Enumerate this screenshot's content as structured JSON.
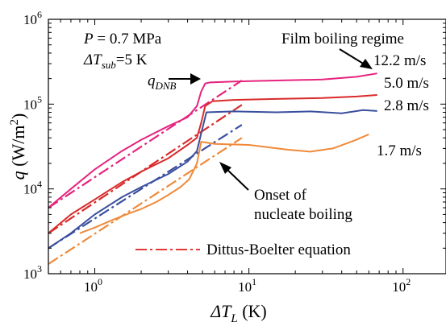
{
  "chart_data": {
    "type": "line",
    "xscale": "log",
    "yscale": "log",
    "xlim": [
      0.5,
      190
    ],
    "ylim": [
      1000,
      1000000
    ],
    "grid": false,
    "xlabel": {
      "main": "ΔT",
      "sub": "L",
      "unit": " (K)"
    },
    "ylabel": {
      "main": "q",
      "unit": "  (W/m",
      "sup": "2",
      "close": ")"
    },
    "xticks": [
      {
        "value": 1,
        "base": "10",
        "exp": "0"
      },
      {
        "value": 10,
        "base": "10",
        "exp": "1"
      },
      {
        "value": 100,
        "base": "10",
        "exp": "2"
      }
    ],
    "yticks": [
      {
        "value": 1000,
        "base": "10",
        "exp": "3"
      },
      {
        "value": 10000,
        "base": "10",
        "exp": "4"
      },
      {
        "value": 100000,
        "base": "10",
        "exp": "5"
      },
      {
        "value": 1000000,
        "base": "10",
        "exp": "6"
      }
    ],
    "conditions": {
      "pressure": {
        "sym": "P",
        "text": " = 0.7 MPa"
      },
      "subcooling": {
        "sym": "ΔT",
        "sub": "sub",
        "text": "=5 K"
      }
    },
    "annotations": {
      "film": "Film boiling regime",
      "qdnb": {
        "sym": "q",
        "sub": "DNB"
      },
      "onb_line1": "Onset of",
      "onb_line2": "nucleate boiling"
    },
    "legend": {
      "label": "Dittus-Boelter equation",
      "position": "bottom-center",
      "color": "#e23a3a"
    },
    "series": [
      {
        "name": "12.2 m/s",
        "color": "#e6237e",
        "x": [
          0.5,
          0.7,
          1.0,
          1.5,
          2.0,
          3.0,
          4.0,
          4.6,
          4.9,
          5.2,
          5.6,
          8,
          15,
          30,
          50,
          68
        ],
        "y": [
          6000,
          10000,
          17000,
          28000,
          38000,
          55000,
          70000,
          95000,
          140000,
          175000,
          180000,
          185000,
          190000,
          195000,
          210000,
          230000
        ],
        "fit": {
          "x": [
            0.5,
            9
          ],
          "y": [
            6000,
            190000
          ]
        }
      },
      {
        "name": "5.0 m/s",
        "color": "#d92a2a",
        "x": [
          0.5,
          0.7,
          1.0,
          1.5,
          2.0,
          3.0,
          4.0,
          4.6,
          4.9,
          5.2,
          5.8,
          8,
          15,
          30,
          50,
          68
        ],
        "y": [
          3000,
          5000,
          7500,
          12000,
          16000,
          23000,
          33000,
          40000,
          60000,
          95000,
          108000,
          112000,
          115000,
          118000,
          123000,
          128000
        ],
        "fit": {
          "x": [
            0.5,
            9
          ],
          "y": [
            3000,
            98000
          ]
        }
      },
      {
        "name": "2.8 m/s",
        "color": "#3a4f9e",
        "x": [
          0.5,
          0.7,
          1.0,
          1.5,
          2.0,
          3.0,
          4.0,
          4.6,
          4.9,
          5.3,
          8,
          15,
          25,
          40,
          55,
          68
        ],
        "y": [
          2000,
          3000,
          5000,
          8000,
          10500,
          15000,
          21000,
          28000,
          45000,
          80000,
          82000,
          80000,
          82000,
          78000,
          85000,
          83000
        ],
        "fit": {
          "x": [
            0.5,
            9
          ],
          "y": [
            2000,
            57000
          ]
        }
      },
      {
        "name": "1.7 m/s",
        "color": "#f08a3a",
        "x": [
          0.8,
          1.0,
          1.3,
          1.6,
          2.0,
          2.5,
          3.0,
          3.6,
          4.1,
          4.6,
          4.9,
          6,
          10,
          18,
          25,
          35,
          48,
          60
        ],
        "y": [
          3000,
          3500,
          4300,
          5000,
          5800,
          7000,
          8500,
          10500,
          13000,
          20000,
          36000,
          34000,
          33000,
          29000,
          27500,
          30000,
          37000,
          44000
        ],
        "fit": {
          "x": [
            0.5,
            9
          ],
          "y": [
            1300,
            40000
          ]
        }
      }
    ]
  }
}
